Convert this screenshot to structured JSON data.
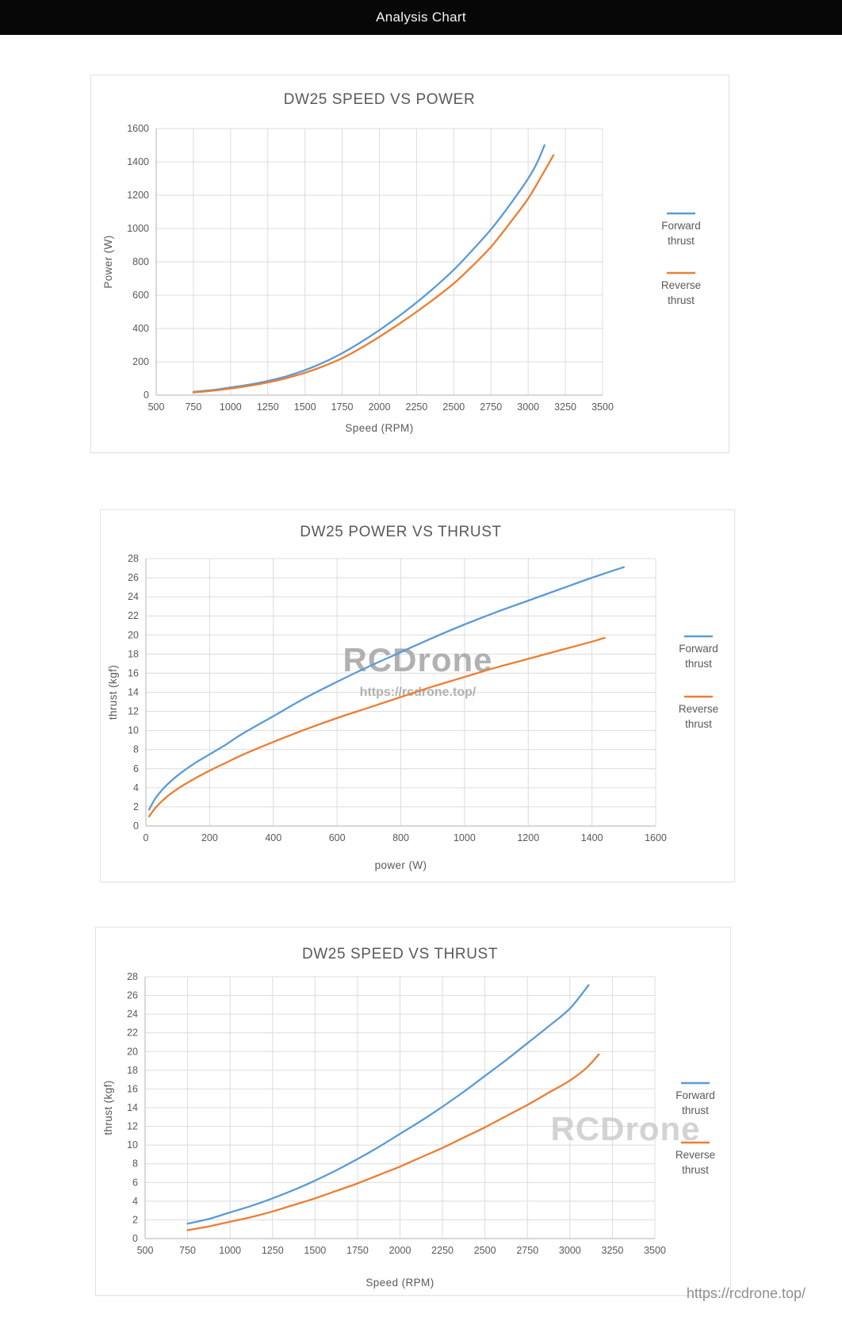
{
  "header": {
    "title": "Analysis Chart"
  },
  "footer": {
    "url": "https://rcdrone.top/"
  },
  "colors": {
    "forward": "#5B9BD5",
    "reverse": "#ED7D31",
    "grid": "#dcdcdc",
    "axis": "#c0c0c0",
    "text": "#595959",
    "watermark_dark": "#9e9e9e",
    "watermark_light": "#c9c9c9"
  },
  "chart_data": [
    {
      "type": "line",
      "title": "DW25 SPEED VS POWER",
      "xlabel": "Speed (RPM)",
      "ylabel": "Power (W)",
      "xlim": [
        500,
        3500
      ],
      "xstep": 250,
      "ylim": [
        0,
        1600
      ],
      "ystep": 200,
      "grid": true,
      "legend_position": "right",
      "watermarks": [],
      "series": [
        {
          "name": "Forward thrust",
          "color_key": "forward",
          "points": [
            [
              750,
              20
            ],
            [
              875,
              30
            ],
            [
              1000,
              46
            ],
            [
              1125,
              63
            ],
            [
              1250,
              85
            ],
            [
              1375,
              113
            ],
            [
              1500,
              150
            ],
            [
              1625,
              196
            ],
            [
              1750,
              252
            ],
            [
              1875,
              317
            ],
            [
              2000,
              390
            ],
            [
              2125,
              470
            ],
            [
              2250,
              556
            ],
            [
              2375,
              650
            ],
            [
              2500,
              752
            ],
            [
              2625,
              870
            ],
            [
              2750,
              995
            ],
            [
              2875,
              1140
            ],
            [
              3000,
              1300
            ],
            [
              3060,
              1395
            ],
            [
              3110,
              1500
            ]
          ]
        },
        {
          "name": "Reverse thrust",
          "color_key": "reverse",
          "points": [
            [
              750,
              16
            ],
            [
              875,
              26
            ],
            [
              1000,
              40
            ],
            [
              1125,
              56
            ],
            [
              1250,
              76
            ],
            [
              1375,
              102
            ],
            [
              1500,
              134
            ],
            [
              1625,
              174
            ],
            [
              1750,
              222
            ],
            [
              1875,
              282
            ],
            [
              2000,
              350
            ],
            [
              2125,
              423
            ],
            [
              2250,
              500
            ],
            [
              2375,
              582
            ],
            [
              2500,
              670
            ],
            [
              2625,
              775
            ],
            [
              2750,
              890
            ],
            [
              2875,
              1030
            ],
            [
              3000,
              1180
            ],
            [
              3100,
              1330
            ],
            [
              3170,
              1440
            ]
          ]
        }
      ]
    },
    {
      "type": "line",
      "title": "DW25 POWER VS THRUST",
      "xlabel": "power (W)",
      "ylabel": "thrust (kgf)",
      "xlim": [
        0,
        1600
      ],
      "xstep": 200,
      "ylim": [
        0,
        28
      ],
      "ystep": 2,
      "grid": true,
      "legend_position": "right",
      "watermarks": [
        {
          "text": "RCDrone",
          "style": "big"
        },
        {
          "text": "https://rcdrone.top/",
          "style": "url"
        }
      ],
      "series": [
        {
          "name": "Forward thrust",
          "color_key": "forward",
          "points": [
            [
              10,
              1.7
            ],
            [
              30,
              2.9
            ],
            [
              60,
              4.1
            ],
            [
              100,
              5.3
            ],
            [
              150,
              6.5
            ],
            [
              200,
              7.5
            ],
            [
              250,
              8.5
            ],
            [
              300,
              9.6
            ],
            [
              400,
              11.5
            ],
            [
              500,
              13.4
            ],
            [
              600,
              15.1
            ],
            [
              700,
              16.7
            ],
            [
              800,
              18.2
            ],
            [
              900,
              19.7
            ],
            [
              1000,
              21.1
            ],
            [
              1100,
              22.4
            ],
            [
              1200,
              23.6
            ],
            [
              1300,
              24.8
            ],
            [
              1400,
              26.0
            ],
            [
              1500,
              27.1
            ]
          ]
        },
        {
          "name": "Reverse thrust",
          "color_key": "reverse",
          "points": [
            [
              10,
              1.0
            ],
            [
              30,
              1.9
            ],
            [
              60,
              2.9
            ],
            [
              100,
              3.9
            ],
            [
              150,
              4.9
            ],
            [
              200,
              5.8
            ],
            [
              250,
              6.6
            ],
            [
              300,
              7.4
            ],
            [
              400,
              8.8
            ],
            [
              500,
              10.1
            ],
            [
              600,
              11.3
            ],
            [
              700,
              12.4
            ],
            [
              800,
              13.5
            ],
            [
              900,
              14.6
            ],
            [
              1000,
              15.6
            ],
            [
              1100,
              16.6
            ],
            [
              1200,
              17.5
            ],
            [
              1300,
              18.4
            ],
            [
              1400,
              19.3
            ],
            [
              1440,
              19.7
            ]
          ]
        }
      ]
    },
    {
      "type": "line",
      "title": "DW25 SPEED VS THRUST",
      "xlabel": "Speed (RPM)",
      "ylabel": "thrust (kgf)",
      "xlim": [
        500,
        3500
      ],
      "xstep": 250,
      "ylim": [
        0,
        28
      ],
      "ystep": 2,
      "grid": true,
      "legend_position": "right",
      "watermarks": [
        {
          "text": "RCDrone",
          "style": "big-light"
        }
      ],
      "series": [
        {
          "name": "Forward thrust",
          "color_key": "forward",
          "points": [
            [
              750,
              1.6
            ],
            [
              875,
              2.1
            ],
            [
              1000,
              2.8
            ],
            [
              1125,
              3.5
            ],
            [
              1250,
              4.3
            ],
            [
              1375,
              5.2
            ],
            [
              1500,
              6.2
            ],
            [
              1625,
              7.3
            ],
            [
              1750,
              8.5
            ],
            [
              1875,
              9.8
            ],
            [
              2000,
              11.2
            ],
            [
              2125,
              12.6
            ],
            [
              2250,
              14.1
            ],
            [
              2375,
              15.7
            ],
            [
              2500,
              17.4
            ],
            [
              2625,
              19.1
            ],
            [
              2750,
              20.9
            ],
            [
              2875,
              22.7
            ],
            [
              3000,
              24.6
            ],
            [
              3110,
              27.1
            ]
          ]
        },
        {
          "name": "Reverse thrust",
          "color_key": "reverse",
          "points": [
            [
              750,
              0.9
            ],
            [
              875,
              1.3
            ],
            [
              1000,
              1.8
            ],
            [
              1125,
              2.3
            ],
            [
              1250,
              2.9
            ],
            [
              1375,
              3.6
            ],
            [
              1500,
              4.3
            ],
            [
              1625,
              5.1
            ],
            [
              1750,
              5.9
            ],
            [
              1875,
              6.8
            ],
            [
              2000,
              7.7
            ],
            [
              2125,
              8.7
            ],
            [
              2250,
              9.7
            ],
            [
              2375,
              10.8
            ],
            [
              2500,
              11.9
            ],
            [
              2625,
              13.1
            ],
            [
              2750,
              14.3
            ],
            [
              2875,
              15.6
            ],
            [
              3000,
              16.9
            ],
            [
              3100,
              18.3
            ],
            [
              3170,
              19.7
            ]
          ]
        }
      ]
    }
  ]
}
